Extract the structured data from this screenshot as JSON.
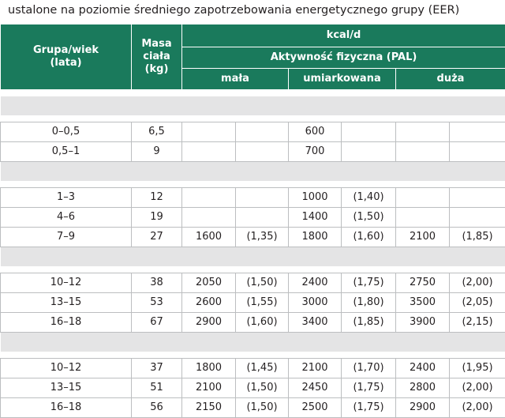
{
  "caption": "ustalone na poziomie średniego zapotrzebowania energetycznego grupy (EER)",
  "header": {
    "col_group_age": "Grupa/wiek (lata)",
    "col_mass": "Masa ciała (kg)",
    "kcal": "kcal/d",
    "pal": "Aktywność fizyczna (PAL)",
    "low": "mała",
    "moderate": "umiarkowana",
    "high": "duża"
  },
  "sections": [
    {
      "rows": [
        {
          "age": "0–0,5",
          "mass": "6,5",
          "low_kcal": "",
          "low_pal": "",
          "mod_kcal": "600",
          "mod_pal": "",
          "high_kcal": "",
          "high_pal": ""
        },
        {
          "age": "0,5–1",
          "mass": "9",
          "low_kcal": "",
          "low_pal": "",
          "mod_kcal": "700",
          "mod_pal": "",
          "high_kcal": "",
          "high_pal": ""
        }
      ]
    },
    {
      "rows": [
        {
          "age": "1–3",
          "mass": "12",
          "low_kcal": "",
          "low_pal": "",
          "mod_kcal": "1000",
          "mod_pal": "(1,40)",
          "high_kcal": "",
          "high_pal": ""
        },
        {
          "age": "4–6",
          "mass": "19",
          "low_kcal": "",
          "low_pal": "",
          "mod_kcal": "1400",
          "mod_pal": "(1,50)",
          "high_kcal": "",
          "high_pal": ""
        },
        {
          "age": "7–9",
          "mass": "27",
          "low_kcal": "1600",
          "low_pal": "(1,35)",
          "mod_kcal": "1800",
          "mod_pal": "(1,60)",
          "high_kcal": "2100",
          "high_pal": "(1,85)"
        }
      ]
    },
    {
      "rows": [
        {
          "age": "10–12",
          "mass": "38",
          "low_kcal": "2050",
          "low_pal": "(1,50)",
          "mod_kcal": "2400",
          "mod_pal": "(1,75)",
          "high_kcal": "2750",
          "high_pal": "(2,00)"
        },
        {
          "age": "13–15",
          "mass": "53",
          "low_kcal": "2600",
          "low_pal": "(1,55)",
          "mod_kcal": "3000",
          "mod_pal": "(1,80)",
          "high_kcal": "3500",
          "high_pal": "(2,05)"
        },
        {
          "age": "16–18",
          "mass": "67",
          "low_kcal": "2900",
          "low_pal": "(1,60)",
          "mod_kcal": "3400",
          "mod_pal": "(1,85)",
          "high_kcal": "3900",
          "high_pal": "(2,15)"
        }
      ]
    },
    {
      "rows": [
        {
          "age": "10–12",
          "mass": "37",
          "low_kcal": "1800",
          "low_pal": "(1,45)",
          "mod_kcal": "2100",
          "mod_pal": "(1,70)",
          "high_kcal": "2400",
          "high_pal": "(1,95)"
        },
        {
          "age": "13–15",
          "mass": "51",
          "low_kcal": "2100",
          "low_pal": "(1,50)",
          "mod_kcal": "2450",
          "mod_pal": "(1,75)",
          "high_kcal": "2800",
          "high_pal": "(2,00)"
        },
        {
          "age": "16–18",
          "mass": "56",
          "low_kcal": "2150",
          "low_pal": "(1,50)",
          "mod_kcal": "2500",
          "mod_pal": "(1,75)",
          "high_kcal": "2900",
          "high_pal": "(2,00)"
        }
      ]
    }
  ]
}
